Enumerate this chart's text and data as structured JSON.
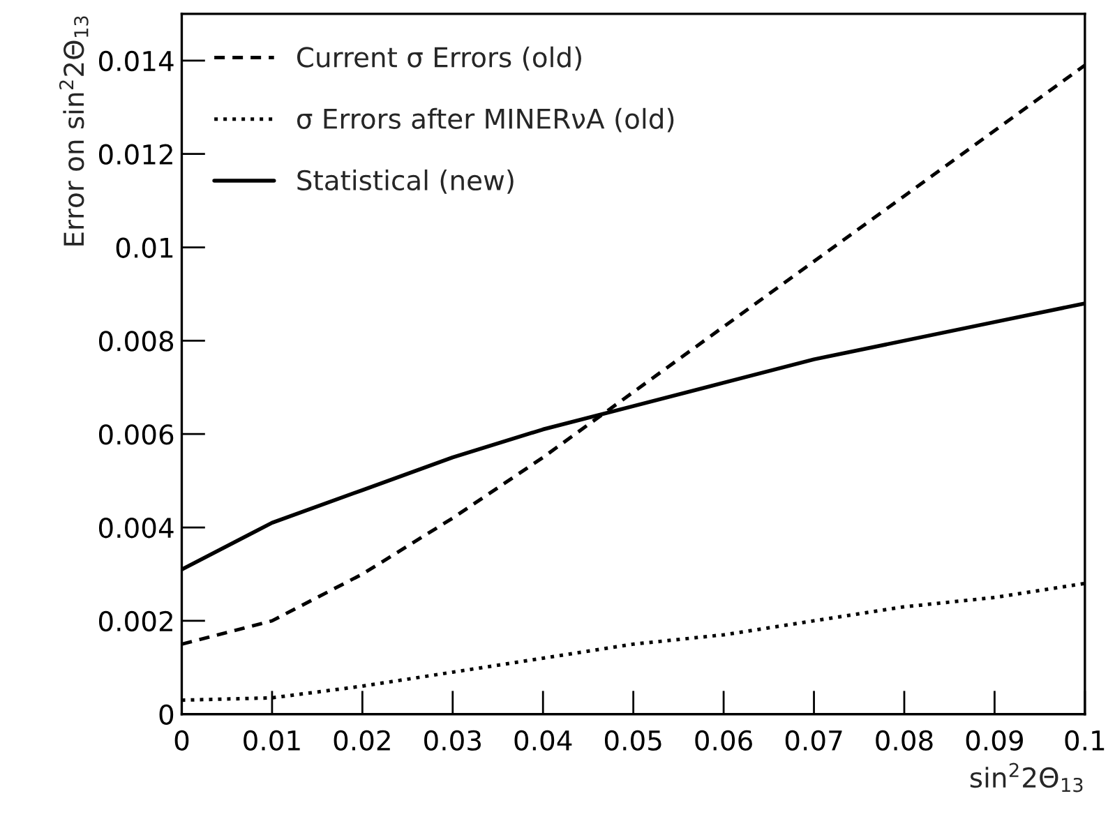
{
  "chart_data": {
    "type": "line",
    "xlabel": "sin$^{2}$2Θ$_{13}$",
    "ylabel": "Error on sin$^{2}$2Θ$_{13}$",
    "x": [
      0,
      0.01,
      0.02,
      0.03,
      0.04,
      0.05,
      0.06,
      0.07,
      0.08,
      0.09,
      0.1
    ],
    "series": [
      {
        "name": "Current σ Errors (old)",
        "color": "#000000",
        "line_style": "dashed",
        "values": [
          0.0015,
          0.002,
          0.003,
          0.0042,
          0.0055,
          0.0069,
          0.0083,
          0.0097,
          0.0111,
          0.0125,
          0.0139
        ]
      },
      {
        "name": "σ Errors after MINERνA (old)",
        "color": "#000000",
        "line_style": "dotted",
        "values": [
          0.0003,
          0.00035,
          0.0006,
          0.0009,
          0.0012,
          0.0015,
          0.0017,
          0.002,
          0.0023,
          0.0025,
          0.0028
        ]
      },
      {
        "name": "Statistical (new)",
        "color": "#000000",
        "line_style": "solid",
        "values": [
          0.0031,
          0.0041,
          0.0048,
          0.0055,
          0.0061,
          0.0066,
          0.0071,
          0.0076,
          0.008,
          0.0084,
          0.0088
        ]
      }
    ],
    "xlim": [
      0,
      0.1
    ],
    "ylim": [
      0,
      0.015
    ],
    "xticks": [
      0,
      0.01,
      0.02,
      0.03,
      0.04,
      0.05,
      0.06,
      0.07,
      0.08,
      0.09,
      0.1
    ],
    "yticks": [
      0,
      0.002,
      0.004,
      0.006,
      0.008,
      0.01,
      0.012,
      0.014
    ],
    "legend": "top left"
  }
}
